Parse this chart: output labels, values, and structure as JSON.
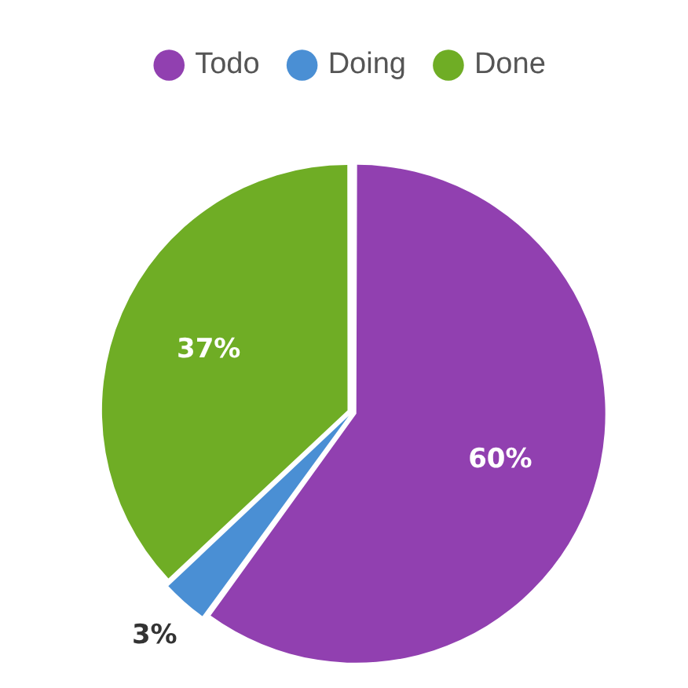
{
  "chart_data": {
    "type": "pie",
    "categories": [
      "Todo",
      "Doing",
      "Done"
    ],
    "values": [
      60,
      3,
      37
    ],
    "colors": [
      "#9140b0",
      "#4a8fd4",
      "#6fad25"
    ],
    "value_labels": [
      "60%",
      "3%",
      "37%"
    ],
    "legend": "top"
  }
}
